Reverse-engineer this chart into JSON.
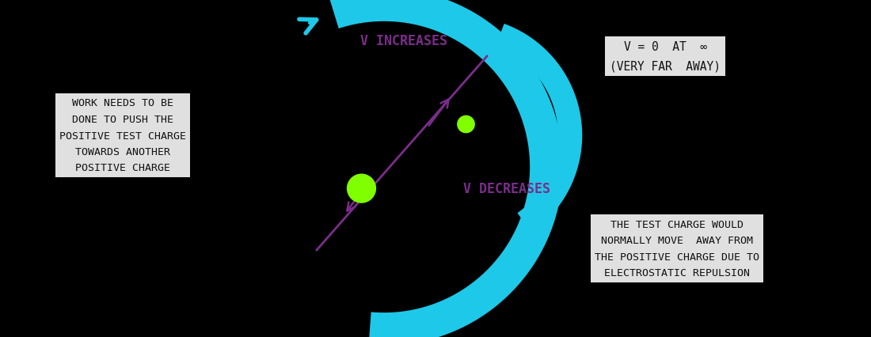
{
  "bg_color": "#000000",
  "cyan_color": "#1EC8E8",
  "purple_color": "#7B2D8B",
  "green_color": "#7FFF00",
  "box_bg": "#E0E0E0",
  "text_color": "#111111",
  "fig_width": 11.0,
  "fig_height": 4.27,
  "box1_text": "WORK NEEDS TO BE\nDONE TO PUSH THE\nPOSITIVE TEST CHARGE\nTOWARDS ANOTHER\nPOSITIVE CHARGE",
  "box2_text": "V = 0  AT  ∞\n(VERY FAR  AWAY)",
  "box3_text": "THE TEST CHARGE WOULD\nNORMALLY MOVE  AWAY FROM\nTHE POSITIVE CHARGE DUE TO\nELECTROSTATIC REPULSION",
  "label_increases": "V INCREASES",
  "label_decreases": "V DECREASES",
  "large_dot": [
    0.415,
    0.44
  ],
  "small_dot": [
    0.535,
    0.63
  ],
  "large_dot_r": 0.042,
  "small_dot_r": 0.025
}
